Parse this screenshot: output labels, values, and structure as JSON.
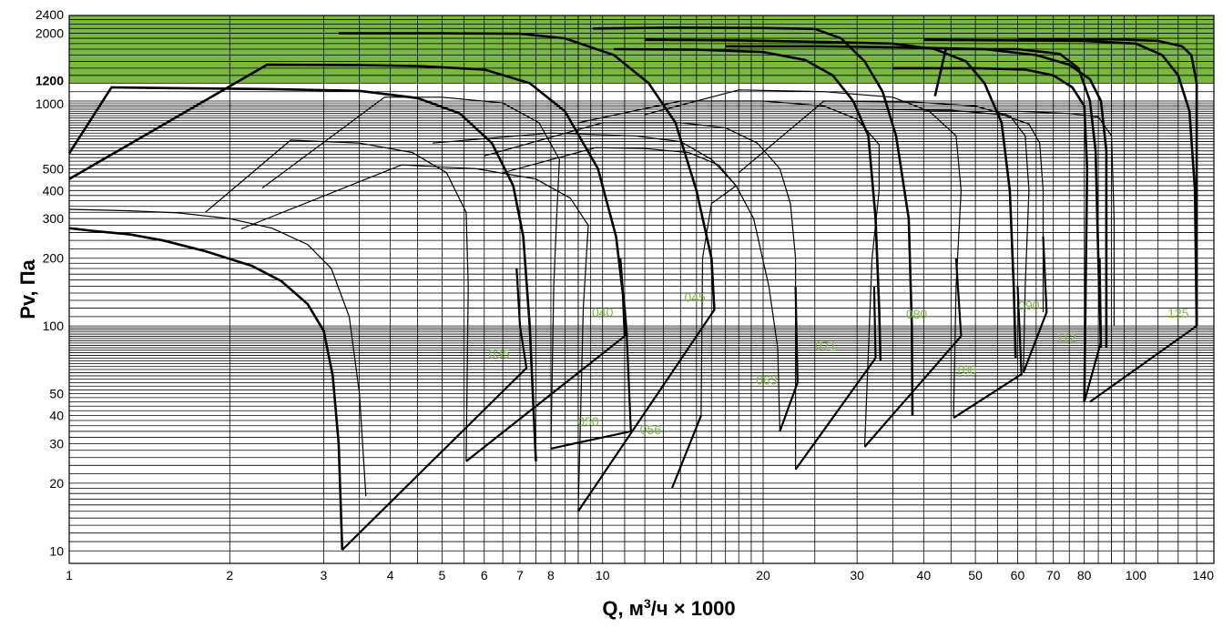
{
  "chart_data": {
    "type": "line",
    "title": "",
    "xlabel": "Q, м³/ч × 1000",
    "ylabel": "Pv, Па",
    "xlabel_parts": {
      "q": "Q, м",
      "sup": "3",
      "rest": "/ч × 1000"
    },
    "x_scale": "log",
    "y_scale": "log",
    "xlim": [
      1,
      140
    ],
    "ylim": [
      8.8,
      2400
    ],
    "grid": true,
    "x_ticks": [
      "1",
      "2",
      "3",
      "4",
      "5",
      "6",
      "7",
      "8",
      "10",
      "20",
      "30",
      "40",
      "50",
      "60",
      "70",
      "80",
      "100",
      "140"
    ],
    "y_ticks": [
      "10",
      "20",
      "30",
      "40",
      "50",
      "100",
      "200",
      "300",
      "400",
      "500",
      "1000",
      "1200",
      "2000",
      "2400"
    ],
    "colors": {
      "accent": "#7aba3a",
      "band": "#79b941",
      "label": "#79b941",
      "grid": "#000000"
    },
    "shaded_band": {
      "ymin": 1200,
      "ymax": 2400
    },
    "series": [
      {
        "name": "035",
        "label_at": [
          6.4,
          72
        ],
        "thick": [
          [
            1,
            272
          ],
          [
            1.1,
            265
          ],
          [
            1.3,
            255
          ],
          [
            1.5,
            240
          ],
          [
            1.8,
            215
          ],
          [
            2.2,
            185
          ],
          [
            2.5,
            158
          ],
          [
            2.8,
            125
          ],
          [
            3.0,
            95
          ],
          [
            3.12,
            60
          ],
          [
            3.2,
            30
          ],
          [
            3.25,
            10.1
          ]
        ],
        "thin": [
          [
            1,
            330
          ],
          [
            1.3,
            325
          ],
          [
            1.6,
            318
          ],
          [
            2.0,
            300
          ],
          [
            2.4,
            272
          ],
          [
            2.8,
            230
          ],
          [
            3.1,
            180
          ],
          [
            3.35,
            110
          ],
          [
            3.5,
            50
          ],
          [
            3.6,
            17.5
          ]
        ],
        "frame": [
          [
            3.25,
            10.1
          ],
          [
            7.2,
            65
          ],
          [
            7.0,
            100
          ],
          [
            6.9,
            180
          ]
        ]
      },
      {
        "name": "040",
        "label_at": [
          10.0,
          110
        ],
        "thick": [
          [
            1,
            585
          ],
          [
            1.2,
            1150
          ],
          [
            1.6,
            1140
          ],
          [
            2.4,
            1130
          ],
          [
            3.5,
            1110
          ],
          [
            4.5,
            1030
          ],
          [
            5.4,
            880
          ],
          [
            6.2,
            650
          ],
          [
            6.8,
            420
          ],
          [
            7.1,
            250
          ],
          [
            7.3,
            100
          ],
          [
            7.5,
            25
          ]
        ],
        "thin": [
          [
            1.8,
            320
          ],
          [
            2.6,
            670
          ],
          [
            3.5,
            650
          ],
          [
            4.4,
            590
          ],
          [
            5.1,
            480
          ],
          [
            5.55,
            320
          ],
          [
            5.6,
            150
          ],
          [
            5.55,
            25
          ]
        ],
        "frame": [
          [
            5.55,
            25
          ],
          [
            11.0,
            90
          ],
          [
            10.9,
            150
          ],
          [
            10.8,
            200
          ]
        ]
      },
      {
        "name": "045",
        "label_at": [
          14.9,
          128
        ],
        "thick": [
          [
            1,
            450
          ],
          [
            2.35,
            1450
          ],
          [
            3.5,
            1445
          ],
          [
            4.5,
            1430
          ],
          [
            6.0,
            1380
          ],
          [
            7.3,
            1200
          ],
          [
            8.5,
            900
          ],
          [
            9.8,
            500
          ],
          [
            10.6,
            250
          ],
          [
            11.0,
            120
          ],
          [
            11.1,
            90
          ]
        ],
        "thin": [
          [
            2.3,
            410
          ],
          [
            3.9,
            1040
          ],
          [
            5.0,
            1040
          ],
          [
            6.5,
            980
          ],
          [
            7.6,
            800
          ],
          [
            8.3,
            550
          ],
          [
            8.2,
            300
          ],
          [
            8.1,
            150
          ],
          [
            8.0,
            28.5
          ]
        ],
        "frame": [
          [
            8.0,
            28.5
          ],
          [
            11.3,
            34
          ],
          [
            11.1,
            90
          ]
        ]
      },
      {
        "name": "050",
        "label_at": [
          9.4,
          36
        ],
        "thick": [
          [
            3.2,
            2000
          ],
          [
            5.0,
            2000
          ],
          [
            7.0,
            1990
          ],
          [
            8.5,
            1900
          ],
          [
            10.5,
            1600
          ],
          [
            12.2,
            1200
          ],
          [
            13.7,
            800
          ],
          [
            15.0,
            400
          ],
          [
            16.0,
            200
          ],
          [
            16.2,
            118
          ]
        ],
        "thin": [
          [
            2.1,
            270
          ],
          [
            4.2,
            520
          ],
          [
            5.8,
            500
          ],
          [
            7.5,
            450
          ],
          [
            8.7,
            370
          ],
          [
            9.4,
            280
          ],
          [
            9.2,
            120
          ],
          [
            9.0,
            15
          ]
        ],
        "frame": [
          [
            9.0,
            15
          ],
          [
            16.2,
            118
          ],
          [
            16.0,
            200
          ]
        ]
      },
      {
        "name": "056",
        "label_at": [
          12.3,
          33
        ],
        "thick": [
          [
            9.6,
            2100
          ],
          [
            14.0,
            2120
          ],
          [
            20,
            2110
          ],
          [
            25,
            2090
          ],
          [
            28,
            1900
          ],
          [
            31,
            1500
          ],
          [
            33.5,
            1100
          ],
          [
            35.5,
            700
          ],
          [
            37.5,
            300
          ],
          [
            38,
            100
          ],
          [
            38.1,
            40
          ]
        ],
        "thin": [
          [
            6.5,
            480
          ],
          [
            9.7,
            620
          ],
          [
            12,
            615
          ],
          [
            14.5,
            590
          ],
          [
            16.5,
            520
          ],
          [
            17.8,
            420
          ],
          [
            16,
            350
          ],
          [
            15.4,
            200
          ],
          [
            15.3,
            40
          ]
        ],
        "frame": [
          [
            13.5,
            19
          ],
          [
            15.3,
            40
          ]
        ]
      },
      {
        "name": "063",
        "label_at": [
          20.3,
          55
        ],
        "thick": [
          [
            10.5,
            1700
          ],
          [
            15,
            1690
          ],
          [
            20,
            1650
          ],
          [
            24,
            1520
          ],
          [
            27,
            1300
          ],
          [
            29.5,
            1000
          ],
          [
            31.5,
            700
          ],
          [
            32.5,
            300
          ],
          [
            33,
            120
          ],
          [
            33.2,
            70
          ]
        ],
        "thin": [
          [
            4.8,
            650
          ],
          [
            8,
            720
          ],
          [
            11.5,
            700
          ],
          [
            14,
            660
          ],
          [
            16,
            550
          ],
          [
            17.8,
            420
          ],
          [
            19.2,
            300
          ],
          [
            20.5,
            150
          ],
          [
            21.3,
            80
          ],
          [
            21.5,
            34
          ]
        ],
        "frame": [
          [
            21.5,
            34
          ],
          [
            23.2,
            56
          ],
          [
            23.0,
            150
          ]
        ]
      },
      {
        "name": "071",
        "label_at": [
          26.2,
          78
        ],
        "thick": [
          [
            12,
            1870
          ],
          [
            18,
            1860
          ],
          [
            26,
            1830
          ],
          [
            35,
            1800
          ],
          [
            42,
            1700
          ],
          [
            48,
            1500
          ],
          [
            52,
            1200
          ],
          [
            56,
            800
          ],
          [
            58,
            400
          ],
          [
            59,
            150
          ],
          [
            59.5,
            72
          ]
        ],
        "thin": [
          [
            6,
            570
          ],
          [
            10,
            800
          ],
          [
            14,
            800
          ],
          [
            17,
            760
          ],
          [
            19.5,
            650
          ],
          [
            21.5,
            500
          ],
          [
            22.5,
            350
          ],
          [
            23,
            200
          ],
          [
            23,
            23
          ]
        ],
        "frame": [
          [
            23,
            23
          ],
          [
            32.5,
            72
          ],
          [
            32.3,
            150
          ]
        ]
      },
      {
        "name": "080",
        "label_at": [
          38.8,
          108
        ],
        "thick": [
          [
            17,
            1750
          ],
          [
            26,
            1750
          ],
          [
            37,
            1730
          ],
          [
            52,
            1700
          ],
          [
            65,
            1600
          ],
          [
            75,
            1450
          ],
          [
            82,
            1250
          ],
          [
            86,
            1000
          ],
          [
            88,
            600
          ],
          [
            88,
            200
          ],
          [
            88,
            80
          ]
        ],
        "thin": [
          [
            9,
            800
          ],
          [
            14,
            1000
          ],
          [
            20,
            1000
          ],
          [
            26,
            950
          ],
          [
            30,
            830
          ],
          [
            33,
            640
          ],
          [
            33,
            400
          ],
          [
            32,
            200
          ],
          [
            31,
            29
          ]
        ],
        "frame": [
          [
            31,
            29
          ],
          [
            47,
            90
          ],
          [
            46,
            200
          ]
        ]
      },
      {
        "name": "090",
        "label_at": [
          63,
          118
        ],
        "thick": [
          [
            40,
            1870
          ],
          [
            60,
            1860
          ],
          [
            80,
            1850
          ],
          [
            100,
            1800
          ],
          [
            112,
            1600
          ],
          [
            120,
            1300
          ],
          [
            126,
            900
          ],
          [
            129,
            400
          ],
          [
            130,
            100
          ]
        ],
        "thin": [
          [
            12,
            870
          ],
          [
            18,
            1120
          ],
          [
            26,
            1100
          ],
          [
            35,
            1040
          ],
          [
            41,
            900
          ],
          [
            46,
            700
          ],
          [
            47,
            400
          ],
          [
            46,
            150
          ],
          [
            45.5,
            39
          ]
        ],
        "frame": [
          [
            45.5,
            39
          ],
          [
            61,
            61
          ],
          [
            60,
            150
          ]
        ]
      },
      {
        "name": "100",
        "label_at": [
          48,
          61
        ],
        "thick": [
          [
            42,
            1050
          ],
          [
            44,
            1700
          ],
          [
            60,
            1700
          ],
          [
            72,
            1620
          ],
          [
            78,
            1400
          ],
          [
            82,
            1000
          ],
          [
            84,
            600
          ],
          [
            85,
            200
          ],
          [
            86,
            80
          ]
        ],
        "thin": [
          [
            18,
            480
          ],
          [
            26,
            1000
          ],
          [
            38,
            990
          ],
          [
            50,
            950
          ],
          [
            58,
            860
          ],
          [
            62,
            700
          ],
          [
            63,
            400
          ],
          [
            62,
            150
          ],
          [
            61.5,
            62
          ]
        ],
        "frame": [
          [
            61.5,
            62
          ],
          [
            68,
            115
          ],
          [
            67,
            250
          ]
        ]
      },
      {
        "name": "112",
        "label_at": [
          74,
          85
        ],
        "thick": [
          [
            35,
            1400
          ],
          [
            50,
            1400
          ],
          [
            62,
            1380
          ],
          [
            70,
            1300
          ],
          [
            76,
            1150
          ],
          [
            80,
            950
          ],
          [
            81,
            500
          ],
          [
            80.5,
            150
          ],
          [
            80,
            46
          ]
        ],
        "thin": [
          [
            30,
            920
          ],
          [
            45,
            910
          ],
          [
            56,
            870
          ],
          [
            63,
            790
          ],
          [
            66,
            650
          ],
          [
            67,
            400
          ],
          [
            67,
            150
          ],
          [
            67,
            115
          ]
        ],
        "frame": [
          [
            80,
            46
          ],
          [
            86,
            85
          ],
          [
            85.5,
            200
          ]
        ]
      },
      {
        "name": "125",
        "label_at": [
          120,
          109
        ],
        "thick": [
          [
            60,
            1880
          ],
          [
            90,
            1880
          ],
          [
            110,
            1850
          ],
          [
            122,
            1750
          ],
          [
            127,
            1600
          ],
          [
            130,
            1200
          ],
          [
            130,
            400
          ],
          [
            130,
            100
          ]
        ],
        "thin": [
          [
            40,
            900
          ],
          [
            60,
            900
          ],
          [
            75,
            880
          ],
          [
            85,
            850
          ],
          [
            90,
            700
          ],
          [
            91,
            300
          ],
          [
            91,
            100
          ]
        ],
        "frame": [
          [
            82,
            46
          ],
          [
            130,
            100
          ]
        ]
      }
    ]
  }
}
